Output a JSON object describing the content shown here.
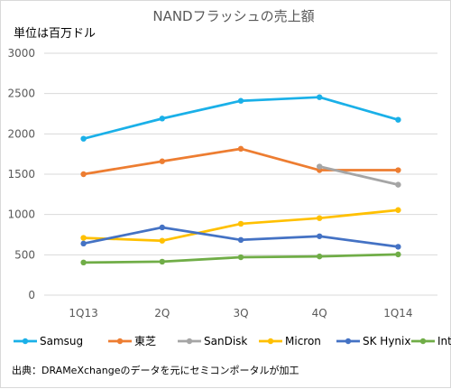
{
  "chart_data": {
    "type": "line",
    "title": "NANDフラッシュの売上額",
    "ylabel": "単位は百万ドル",
    "xlabel": "",
    "categories": [
      "1Q13",
      "2Q",
      "3Q",
      "4Q",
      "1Q14"
    ],
    "ylim": [
      0,
      3000
    ],
    "yticks": [
      0,
      500,
      1000,
      1500,
      2000,
      2500,
      3000
    ],
    "grid": true,
    "legend_position": "bottom",
    "series": [
      {
        "name": "Samsug",
        "color": "#1ab0e8",
        "values": [
          1940,
          2190,
          2410,
          2455,
          2175
        ]
      },
      {
        "name": "東芝",
        "color": "#ed7d31",
        "values": [
          1500,
          1660,
          1815,
          1550,
          1550
        ]
      },
      {
        "name": "SanDisk",
        "color": "#a5a5a5",
        "values": [
          null,
          null,
          null,
          1595,
          1370
        ]
      },
      {
        "name": "Micron",
        "color": "#ffc000",
        "values": [
          710,
          675,
          885,
          955,
          1055
        ]
      },
      {
        "name": "SK Hynix",
        "color": "#4472c4",
        "values": [
          640,
          840,
          685,
          730,
          600
        ]
      },
      {
        "name": "Intel",
        "color": "#70ad47",
        "values": [
          405,
          415,
          470,
          480,
          505
        ]
      }
    ],
    "source": "出典：DRAMeXchangeのデータを元にセミコンポータルが加工"
  }
}
